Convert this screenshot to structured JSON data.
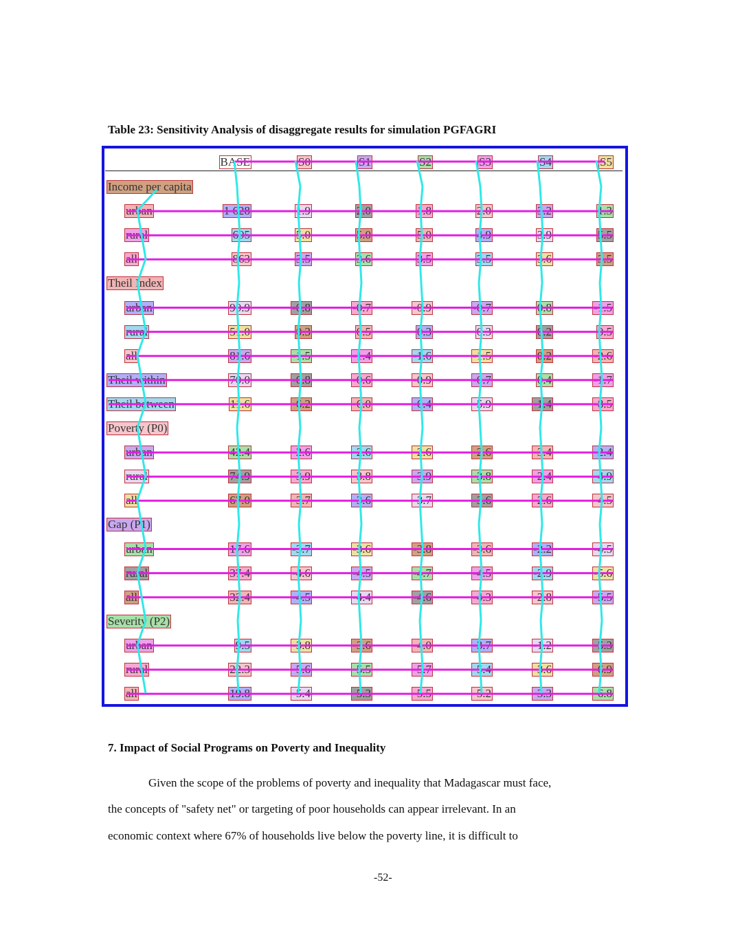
{
  "table": {
    "caption": "Table 23: Sensitivity Analysis of disaggregate results for simulation PGFAGRI",
    "columns": [
      "BASE",
      "S0",
      "S1",
      "S2",
      "S3",
      "S4",
      "S5"
    ],
    "rows": [
      {
        "label": "Income per capita",
        "indent": false,
        "values": null
      },
      {
        "label": "urban",
        "indent": true,
        "values": [
          "1 628",
          "1.9",
          "2.0",
          "1.8",
          "2.0",
          "3.2",
          "1.3"
        ]
      },
      {
        "label": "rural",
        "indent": true,
        "values": [
          "605",
          "5.0",
          "5.0",
          "5.0",
          "4.9",
          "3.9",
          "5.5"
        ]
      },
      {
        "label": "all",
        "indent": true,
        "values": [
          "863",
          "3.5",
          "3.6",
          "3.5",
          "3.5",
          "3.6",
          "3.5"
        ]
      },
      {
        "label": "Theil Index",
        "indent": false,
        "values": null
      },
      {
        "label": "urban",
        "indent": true,
        "values": [
          "90.9",
          "-0.8",
          "-0.7",
          "-0.9",
          "-0.7",
          "0.8",
          "-1.5"
        ]
      },
      {
        "label": "rural",
        "indent": true,
        "values": [
          "51.0",
          "0.3",
          "0.5",
          "0.3",
          "0.3",
          "0.2",
          "0.5"
        ]
      },
      {
        "label": "all",
        "indent": true,
        "values": [
          "81.6",
          "-1.5",
          "-1.4",
          "-1.6",
          "-1.5",
          "0.2",
          "-2.6"
        ]
      },
      {
        "label": "Theil within",
        "indent": false,
        "values": [
          "70.0",
          "-0.8",
          "-0.6",
          "-0.9",
          "-0.7",
          "0.4",
          "-1.7"
        ]
      },
      {
        "label": "Theil between",
        "indent": false,
        "values": [
          "11.6",
          "-6.2",
          "-6.0",
          "-6.4",
          "-5.9",
          "-1.4",
          "-8.5"
        ]
      },
      {
        "label": "Poverty (P0)",
        "indent": false,
        "values": null
      },
      {
        "label": "urban",
        "indent": true,
        "values": [
          "42.4",
          "-2.6",
          "-2.6",
          "-2.6",
          "-2.6",
          "-3.4",
          "-2.4"
        ]
      },
      {
        "label": "rural",
        "indent": true,
        "values": [
          "74.9",
          "-3.9",
          "-3.8",
          "-3.9",
          "-3.8",
          "-2.4",
          "-4.9"
        ]
      },
      {
        "label": "all",
        "indent": true,
        "values": [
          "67.0",
          "-3.7",
          "-3.6",
          "-3.7",
          "-3.6",
          "-2.6",
          "-4.5"
        ]
      },
      {
        "label": "Gap (P1)",
        "indent": false,
        "values": null
      },
      {
        "label": "urban",
        "indent": true,
        "values": [
          "17.6",
          "-3.7",
          "-3.6",
          "-3.8",
          "-3.6",
          "-2.2",
          "-4.5"
        ]
      },
      {
        "label": "rural",
        "indent": true,
        "values": [
          "37.4",
          "-4.6",
          "-4.5",
          "-4.7",
          "-4.5",
          "-2.9",
          "-5.6"
        ]
      },
      {
        "label": "all",
        "indent": true,
        "values": [
          "32.4",
          "-4.5",
          "-4.4",
          "-4.6",
          "-4.3",
          "-2.8",
          "-5.5"
        ]
      },
      {
        "label": "Severity (P2)",
        "indent": false,
        "values": null
      },
      {
        "label": "urban",
        "indent": true,
        "values": [
          "9.5",
          "-3.8",
          "-3.6",
          "-4.0",
          "-3.7",
          "-1.2",
          "-5.3"
        ]
      },
      {
        "label": "rural",
        "indent": true,
        "values": [
          "22.3",
          "-5.6",
          "-5.5",
          "-5.7",
          "-5.4",
          "-3.6",
          "-6.9"
        ]
      },
      {
        "label": "all",
        "indent": true,
        "values": [
          "19.8",
          "-5.4",
          "-5.3",
          "-5.5",
          "-5.2",
          "-3.3",
          "-6.8"
        ]
      }
    ]
  },
  "section": {
    "title": "7. Impact of Social Programs on Poverty and Inequality",
    "lines": [
      "Given the scope of the problems of poverty and inequality that Madagascar must face,",
      "the concepts of \"safety net\"  or targeting of poor households can appear irrelevant. In an",
      "economic context where 67% of households live below the poverty line, it is difficult to"
    ]
  },
  "page_number": "-52-",
  "colors": {
    "frame": "#1515e0",
    "row_line": "#e020e0",
    "column_line": "#30e8e8",
    "cell_border": "#c0303a"
  }
}
